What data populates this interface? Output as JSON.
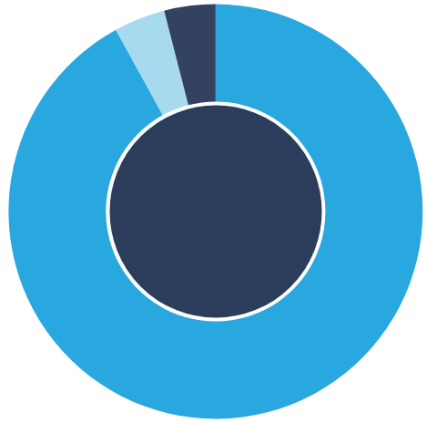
{
  "chart_data": {
    "type": "pie",
    "values": [
      92,
      4,
      4
    ],
    "colors": [
      "#29a8e0",
      "#a8daef",
      "#33425e"
    ],
    "data_labels": false
  }
}
